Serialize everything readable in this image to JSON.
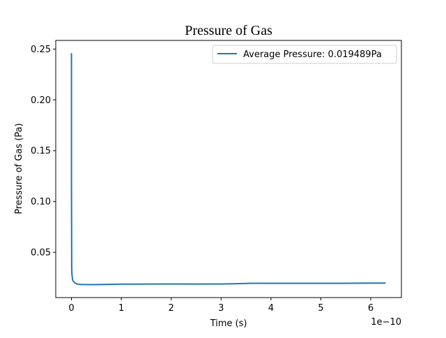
{
  "chart_data": {
    "type": "line",
    "title": "Pressure of Gas",
    "xlabel": "Time (s)",
    "ylabel": "Pressure of Gas (Pa)",
    "x_offset_label": "1e−10",
    "xlim": [
      -0.315,
      6.615
    ],
    "ylim": [
      0.0055,
      0.2585
    ],
    "x_ticks": [
      0,
      1,
      2,
      3,
      4,
      5,
      6
    ],
    "x_tick_labels": [
      "0",
      "1",
      "2",
      "3",
      "4",
      "5",
      "6"
    ],
    "y_ticks": [
      0.05,
      0.1,
      0.15,
      0.2,
      0.25
    ],
    "y_tick_labels": [
      "0.05",
      "0.10",
      "0.15",
      "0.20",
      "0.25"
    ],
    "grid": false,
    "legend_position": "upper right",
    "colors": {
      "series": "#1f77b4",
      "axes": "#000000",
      "background": "#ffffff"
    },
    "series": [
      {
        "name": "Average Pressure: 0.019489Pa",
        "x": [
          0,
          0,
          0.005,
          0.01,
          0.02,
          0.03,
          0.05,
          0.08,
          0.12,
          0.2,
          0.3,
          0.5,
          0.8,
          1.0,
          1.5,
          2.0,
          2.5,
          3.0,
          3.3,
          3.6,
          4.0,
          4.5,
          5.0,
          5.5,
          6.0,
          6.3
        ],
        "y": [
          0.246,
          0.123,
          0.034,
          0.028,
          0.024,
          0.022,
          0.021,
          0.0195,
          0.0188,
          0.0184,
          0.0183,
          0.0183,
          0.0185,
          0.0187,
          0.0188,
          0.0189,
          0.0188,
          0.0189,
          0.0191,
          0.0196,
          0.0196,
          0.0196,
          0.0196,
          0.0196,
          0.0197,
          0.0197
        ]
      }
    ]
  }
}
